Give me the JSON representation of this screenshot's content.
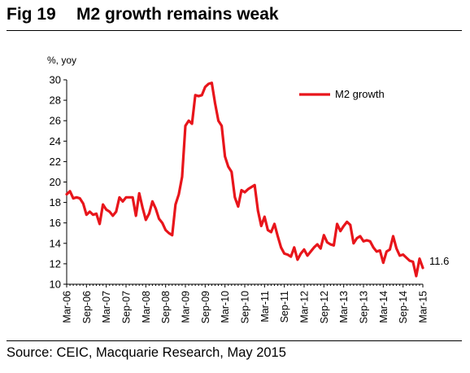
{
  "header": {
    "fig_number": "Fig 19",
    "title": "M2 growth remains weak"
  },
  "footer": {
    "source": "Source: CEIC, Macquarie Research, May 2015"
  },
  "chart_data": {
    "type": "line",
    "title": "M2 growth remains weak",
    "ylabel": "%, yoy",
    "xlabel": "",
    "ylim": [
      10,
      30
    ],
    "yticks": [
      10,
      12,
      14,
      16,
      18,
      20,
      22,
      24,
      26,
      28,
      30
    ],
    "xticks": [
      "Mar-06",
      "Sep-06",
      "Mar-07",
      "Sep-07",
      "Mar-08",
      "Sep-08",
      "Mar-09",
      "Sep-09",
      "Mar-10",
      "Sep-10",
      "Mar-11",
      "Sep-11",
      "Mar-12",
      "Sep-12",
      "Mar-13",
      "Sep-13",
      "Mar-14",
      "Sep-14",
      "Mar-15"
    ],
    "grid": false,
    "legend": "top-right",
    "color": "#e8151b",
    "end_label": "11.6",
    "x": [
      "Mar-06",
      "Apr-06",
      "May-06",
      "Jun-06",
      "Jul-06",
      "Aug-06",
      "Sep-06",
      "Oct-06",
      "Nov-06",
      "Dec-06",
      "Jan-07",
      "Feb-07",
      "Mar-07",
      "Apr-07",
      "May-07",
      "Jun-07",
      "Jul-07",
      "Aug-07",
      "Sep-07",
      "Oct-07",
      "Nov-07",
      "Dec-07",
      "Jan-08",
      "Feb-08",
      "Mar-08",
      "Apr-08",
      "May-08",
      "Jun-08",
      "Jul-08",
      "Aug-08",
      "Sep-08",
      "Oct-08",
      "Nov-08",
      "Dec-08",
      "Jan-09",
      "Feb-09",
      "Mar-09",
      "Apr-09",
      "May-09",
      "Jun-09",
      "Jul-09",
      "Aug-09",
      "Sep-09",
      "Oct-09",
      "Nov-09",
      "Dec-09",
      "Jan-10",
      "Feb-10",
      "Mar-10",
      "Apr-10",
      "May-10",
      "Jun-10",
      "Jul-10",
      "Aug-10",
      "Sep-10",
      "Oct-10",
      "Nov-10",
      "Dec-10",
      "Jan-11",
      "Feb-11",
      "Mar-11",
      "Apr-11",
      "May-11",
      "Jun-11",
      "Jul-11",
      "Aug-11",
      "Sep-11",
      "Oct-11",
      "Nov-11",
      "Dec-11",
      "Jan-12",
      "Feb-12",
      "Mar-12",
      "Apr-12",
      "May-12",
      "Jun-12",
      "Jul-12",
      "Aug-12",
      "Sep-12",
      "Oct-12",
      "Nov-12",
      "Dec-12",
      "Jan-13",
      "Feb-13",
      "Mar-13",
      "Apr-13",
      "May-13",
      "Jun-13",
      "Jul-13",
      "Aug-13",
      "Sep-13",
      "Oct-13",
      "Nov-13",
      "Dec-13",
      "Jan-14",
      "Feb-14",
      "Mar-14",
      "Apr-14",
      "May-14",
      "Jun-14",
      "Jul-14",
      "Aug-14",
      "Sep-14",
      "Oct-14",
      "Nov-14",
      "Dec-14",
      "Jan-15",
      "Feb-15",
      "Mar-15"
    ],
    "series": [
      {
        "name": "M2 growth",
        "values": [
          18.8,
          19.1,
          18.4,
          18.5,
          18.4,
          17.9,
          16.8,
          17.1,
          16.8,
          16.9,
          15.9,
          17.8,
          17.3,
          17.1,
          16.7,
          17.1,
          18.5,
          18.1,
          18.5,
          18.5,
          18.5,
          16.7,
          18.9,
          17.5,
          16.3,
          16.9,
          18.1,
          17.4,
          16.4,
          16.0,
          15.3,
          15.0,
          14.8,
          17.8,
          18.8,
          20.5,
          25.5,
          26.0,
          25.7,
          28.5,
          28.4,
          28.5,
          29.3,
          29.6,
          29.7,
          27.7,
          26.0,
          25.5,
          22.5,
          21.5,
          21.0,
          18.5,
          17.6,
          19.2,
          19.0,
          19.3,
          19.5,
          19.7,
          17.2,
          15.7,
          16.6,
          15.3,
          15.1,
          15.9,
          14.7,
          13.6,
          13.0,
          12.9,
          12.7,
          13.6,
          12.4,
          13.0,
          13.4,
          12.8,
          13.2,
          13.6,
          13.9,
          13.5,
          14.8,
          14.1,
          13.9,
          13.8,
          15.9,
          15.2,
          15.7,
          16.1,
          15.8,
          14.0,
          14.5,
          14.7,
          14.2,
          14.3,
          14.2,
          13.6,
          13.2,
          13.3,
          12.1,
          13.2,
          13.4,
          14.7,
          13.5,
          12.8,
          12.9,
          12.6,
          12.3,
          12.2,
          10.8,
          12.5,
          11.6
        ]
      }
    ]
  }
}
